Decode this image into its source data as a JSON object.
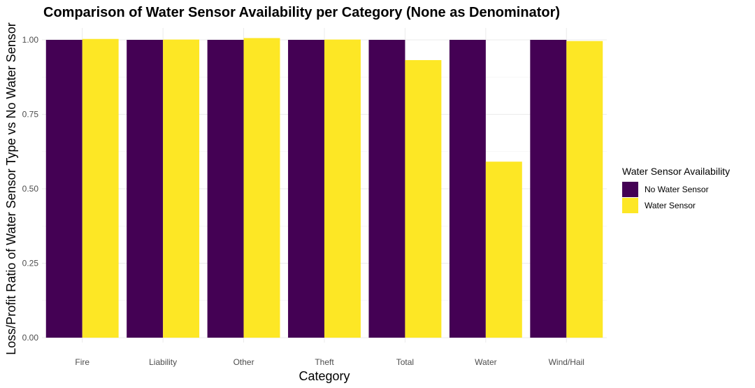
{
  "chart_data": {
    "type": "bar",
    "title": "Comparison of Water Sensor Availability per Category (None as Denominator)",
    "xlabel": "Category",
    "ylabel": "Loss/Profit Ratio of Water Sensor Type vs No Water Sensor",
    "categories": [
      "Fire",
      "Liability",
      "Other",
      "Theft",
      "Total",
      "Water",
      "Wind/Hail"
    ],
    "series": [
      {
        "name": "No Water Sensor",
        "color": "#440154",
        "values": [
          1.0,
          1.0,
          1.0,
          1.0,
          1.0,
          1.0,
          1.0
        ]
      },
      {
        "name": "Water Sensor",
        "color": "#FDE725",
        "values": [
          1.003,
          1.001,
          1.006,
          1.001,
          0.932,
          0.591,
          0.996
        ]
      }
    ],
    "ylim": [
      0,
      1.0
    ],
    "yticks": [
      0.0,
      0.25,
      0.5,
      0.75,
      1.0
    ],
    "ytick_labels": [
      "0.00",
      "0.25",
      "0.50",
      "0.75",
      "1.00"
    ],
    "grid": true,
    "legend": {
      "title": "Water Sensor Availability",
      "position": "right"
    }
  }
}
